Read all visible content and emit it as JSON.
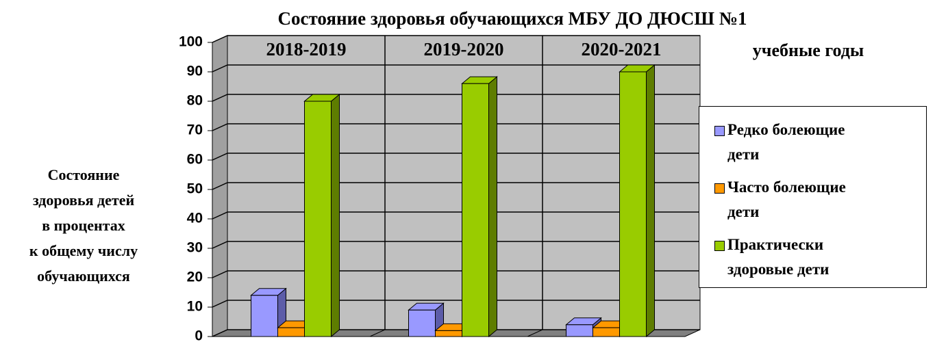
{
  "chart_data": {
    "type": "bar3d",
    "title": "Состояние здоровья обучающихся МБУ ДО ДЮСШ №1",
    "xlabel": "учебные годы",
    "ylabel": [
      "Состояние",
      "здоровья детей",
      "в процентах",
      "к общему числу",
      "обучающихся"
    ],
    "categories": [
      "2018-2019",
      "2019-2020",
      "2020-2021"
    ],
    "series": [
      {
        "name": "Редко болеющие дети",
        "color": "#9999ff",
        "side": "#5c5ca8",
        "values": [
          14,
          9,
          4
        ]
      },
      {
        "name": "Часто болеющие дети",
        "color": "#ff9900",
        "side": "#a86400",
        "values": [
          3,
          2,
          3
        ]
      },
      {
        "name": "Практически здоровые дети",
        "color": "#99cc00",
        "side": "#5e7d00",
        "values": [
          80,
          86,
          90
        ]
      }
    ],
    "ylim": [
      0,
      100
    ],
    "yticks": [
      0,
      10,
      20,
      30,
      40,
      50,
      60,
      70,
      80,
      90,
      100
    ],
    "grid": true
  }
}
